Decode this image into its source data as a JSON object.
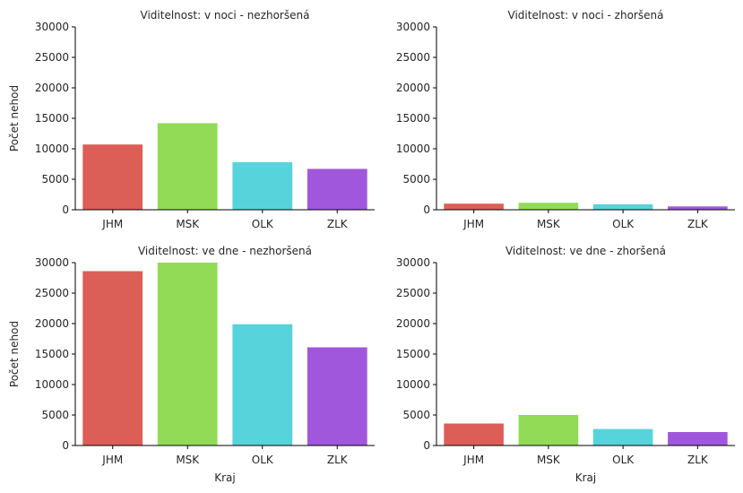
{
  "chart_data": [
    {
      "type": "bar",
      "title": "Viditelnost: v noci - nezhoršená",
      "xlabel": "",
      "ylabel": "Počet nehod",
      "categories": [
        "JHM",
        "MSK",
        "OLK",
        "ZLK"
      ],
      "values": [
        10700,
        14200,
        7800,
        6700
      ],
      "colors": [
        "#db5f57",
        "#91db57",
        "#57d3db",
        "#a157db"
      ],
      "ylim": [
        0,
        30000
      ],
      "yticks": [
        "0",
        "5000",
        "10000",
        "15000",
        "20000",
        "25000",
        "30000"
      ],
      "grid": false
    },
    {
      "type": "bar",
      "title": "Viditelnost: v noci - zhoršená",
      "xlabel": "",
      "ylabel": "",
      "categories": [
        "JHM",
        "MSK",
        "OLK",
        "ZLK"
      ],
      "values": [
        1000,
        1150,
        900,
        550
      ],
      "colors": [
        "#db5f57",
        "#91db57",
        "#57d3db",
        "#a157db"
      ],
      "ylim": [
        0,
        30000
      ],
      "yticks": [
        "0",
        "5000",
        "10000",
        "15000",
        "20000",
        "25000",
        "30000"
      ],
      "grid": false
    },
    {
      "type": "bar",
      "title": "Viditelnost: ve dne - nezhoršená",
      "xlabel": "Kraj",
      "ylabel": "Počet nehod",
      "categories": [
        "JHM",
        "MSK",
        "OLK",
        "ZLK"
      ],
      "values": [
        28600,
        30000,
        19900,
        16100
      ],
      "colors": [
        "#db5f57",
        "#91db57",
        "#57d3db",
        "#a157db"
      ],
      "ylim": [
        0,
        30000
      ],
      "yticks": [
        "0",
        "5000",
        "10000",
        "15000",
        "20000",
        "25000",
        "30000"
      ],
      "grid": false
    },
    {
      "type": "bar",
      "title": "Viditelnost: ve dne - zhoršená",
      "xlabel": "Kraj",
      "ylabel": "",
      "categories": [
        "JHM",
        "MSK",
        "OLK",
        "ZLK"
      ],
      "values": [
        3600,
        5000,
        2700,
        2200
      ],
      "colors": [
        "#db5f57",
        "#91db57",
        "#57d3db",
        "#a157db"
      ],
      "ylim": [
        0,
        30000
      ],
      "yticks": [
        "0",
        "5000",
        "10000",
        "15000",
        "20000",
        "25000",
        "30000"
      ],
      "grid": false
    }
  ]
}
